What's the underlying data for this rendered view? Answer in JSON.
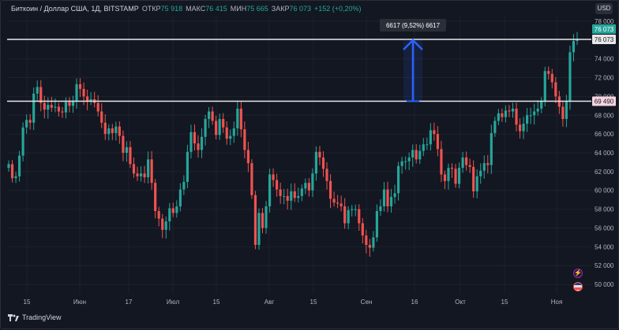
{
  "legend": {
    "symbol": "Биткоин / Доллар США, 1Д, BITSTAMP",
    "open_label": "ОТКР",
    "open_value": "75 918",
    "high_label": "МАКС",
    "high_value": "76 415",
    "low_label": "МИН",
    "low_value": "75 665",
    "close_label": "ЗАКР",
    "close_value": "76 073",
    "change": "+152 (+0,20%)"
  },
  "currency_button": "USD",
  "watermark": "TradingView",
  "annotation": {
    "text": "6617 (9,52%) 6617",
    "color": "#2962ff"
  },
  "price_labels": {
    "last_price_green": "76 073",
    "last_price_line": "76 073",
    "support_line": "69 490"
  },
  "colors": {
    "background": "#131722",
    "up": "#26a69a",
    "down": "#ef5350",
    "grid": "#1e222d",
    "accent": "#2962ff"
  },
  "chart_data": {
    "type": "candlestick",
    "y_axis_ticks": [
      "78 000",
      "76 000",
      "74 000",
      "72 000",
      "70 000",
      "68 000",
      "66 000",
      "64 000",
      "62 000",
      "60 000",
      "58 000",
      "56 000",
      "54 000",
      "52 000",
      "50 000"
    ],
    "ylim": [
      49000,
      78500
    ],
    "x_axis_ticks": [
      "15",
      "Июн",
      "17",
      "Июл",
      "15",
      "Авг",
      "15",
      "Сен",
      "16",
      "Окт",
      "15",
      "Ноя"
    ],
    "horizontal_lines": [
      {
        "value": 76073
      },
      {
        "value": 69490
      }
    ],
    "close_values": [
      62800,
      61300,
      61500,
      63700,
      66700,
      67500,
      67200,
      70300,
      71000,
      69300,
      68600,
      69100,
      68800,
      68900,
      68400,
      68300,
      69400,
      69000,
      69500,
      71300,
      70800,
      70000,
      69500,
      69700,
      69300,
      68400,
      67200,
      66000,
      66600,
      66100,
      66800,
      65800,
      64000,
      64600,
      62800,
      61800,
      61500,
      61800,
      61400,
      63300,
      60800,
      57800,
      57000,
      55800,
      56700,
      58100,
      57600,
      58300,
      60100,
      60900,
      64100,
      66200,
      65000,
      64300,
      65700,
      67600,
      68400,
      67400,
      65900,
      67600,
      66700,
      65500,
      65800,
      66600,
      68700,
      66500,
      64300,
      62900,
      59500,
      54200,
      57600,
      56000,
      58300,
      61700,
      61100,
      60100,
      59400,
      59400,
      58900,
      59900,
      59200,
      59400,
      60200,
      60800,
      60000,
      61800,
      64100,
      63500,
      62300,
      61000,
      59100,
      58700,
      58600,
      58300,
      56500,
      57900,
      58000,
      58000,
      56500,
      55200,
      54200,
      53900,
      55000,
      57800,
      58300,
      60100,
      58300,
      59300,
      59700,
      62600,
      63100,
      63100,
      63500,
      64300,
      63300,
      64200,
      64900,
      64900,
      66400,
      66000,
      64400,
      61700,
      61000,
      62400,
      62300,
      60700,
      62400,
      63500,
      62700,
      62500,
      59900,
      61500,
      62100,
      62900,
      62700,
      66100,
      67400,
      68200,
      67800,
      68500,
      68400,
      68700,
      67000,
      66300,
      67100,
      68000,
      68000,
      68400,
      68700,
      69500,
      72700,
      72400,
      71500,
      70000,
      68900,
      67600,
      69500,
      74700,
      75900,
      76073
    ]
  }
}
